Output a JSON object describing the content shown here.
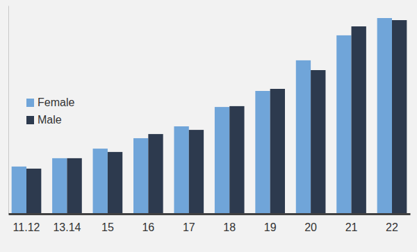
{
  "chart_data": {
    "type": "bar",
    "categories": [
      "11.12",
      "13.14",
      "15",
      "16",
      "17",
      "18",
      "19",
      "20",
      "21",
      "22"
    ],
    "series": [
      {
        "name": "Female",
        "color": "#70a5d9",
        "values": [
          22.7,
          26.7,
          31.3,
          36.3,
          42,
          51.3,
          59,
          73.7,
          85.7,
          94
        ]
      },
      {
        "name": "Male",
        "color": "#2d3a4e",
        "values": [
          21.7,
          26.7,
          29.7,
          38.3,
          40.3,
          51.7,
          60,
          69,
          90,
          93
        ]
      }
    ],
    "ylim": [
      0,
      100
    ],
    "tick_labels": "x",
    "grid": false,
    "legend": "left"
  }
}
